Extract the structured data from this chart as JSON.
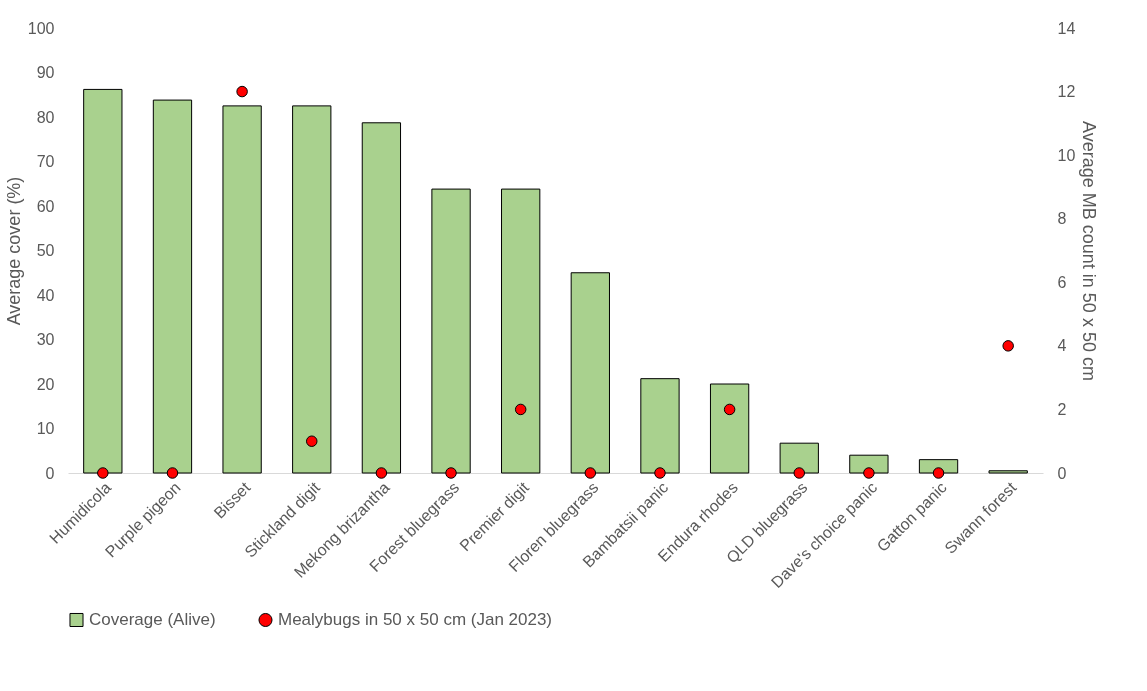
{
  "chart_data": {
    "type": "bar",
    "categories": [
      "Humidicola",
      "Purple pigeon",
      "Bisset",
      "Stickland digit",
      "Mekong brizantha",
      "Forest bluegrass",
      "Premier digit",
      "Floren bluegrass",
      "Bambatsii panic",
      "Endura rhodes",
      "QLD bluegrass",
      "Dave's choice panic",
      "Gatton panic",
      "Swann forest"
    ],
    "series": [
      {
        "name": "Coverage (Alive)",
        "color": "#a9d18e",
        "values": [
          86.2,
          83.8,
          82.5,
          82.5,
          78.7,
          63.8,
          63.8,
          45,
          21.2,
          20,
          6.7,
          4,
          3,
          0.5
        ]
      },
      {
        "name": "Mealybugs in 50 x 50 cm (Jan 2023)",
        "type": "scatter",
        "axis": "y2",
        "color": "#ff0000",
        "values": [
          0,
          0,
          12,
          1,
          0,
          0,
          2,
          0,
          0,
          2,
          0,
          0,
          0,
          4
        ]
      }
    ],
    "ylabel": "Average cover (%)",
    "y2label": "Average MB count in 50 x 50 cm",
    "ylim": [
      0,
      100
    ],
    "yticks": [
      0,
      10,
      20,
      30,
      40,
      50,
      60,
      70,
      80,
      90,
      100
    ],
    "y2lim": [
      0,
      14
    ],
    "y2ticks": [
      0,
      2,
      4,
      6,
      8,
      10,
      12,
      14
    ],
    "marker": "circle",
    "legend": "bottom",
    "grid": false
  }
}
